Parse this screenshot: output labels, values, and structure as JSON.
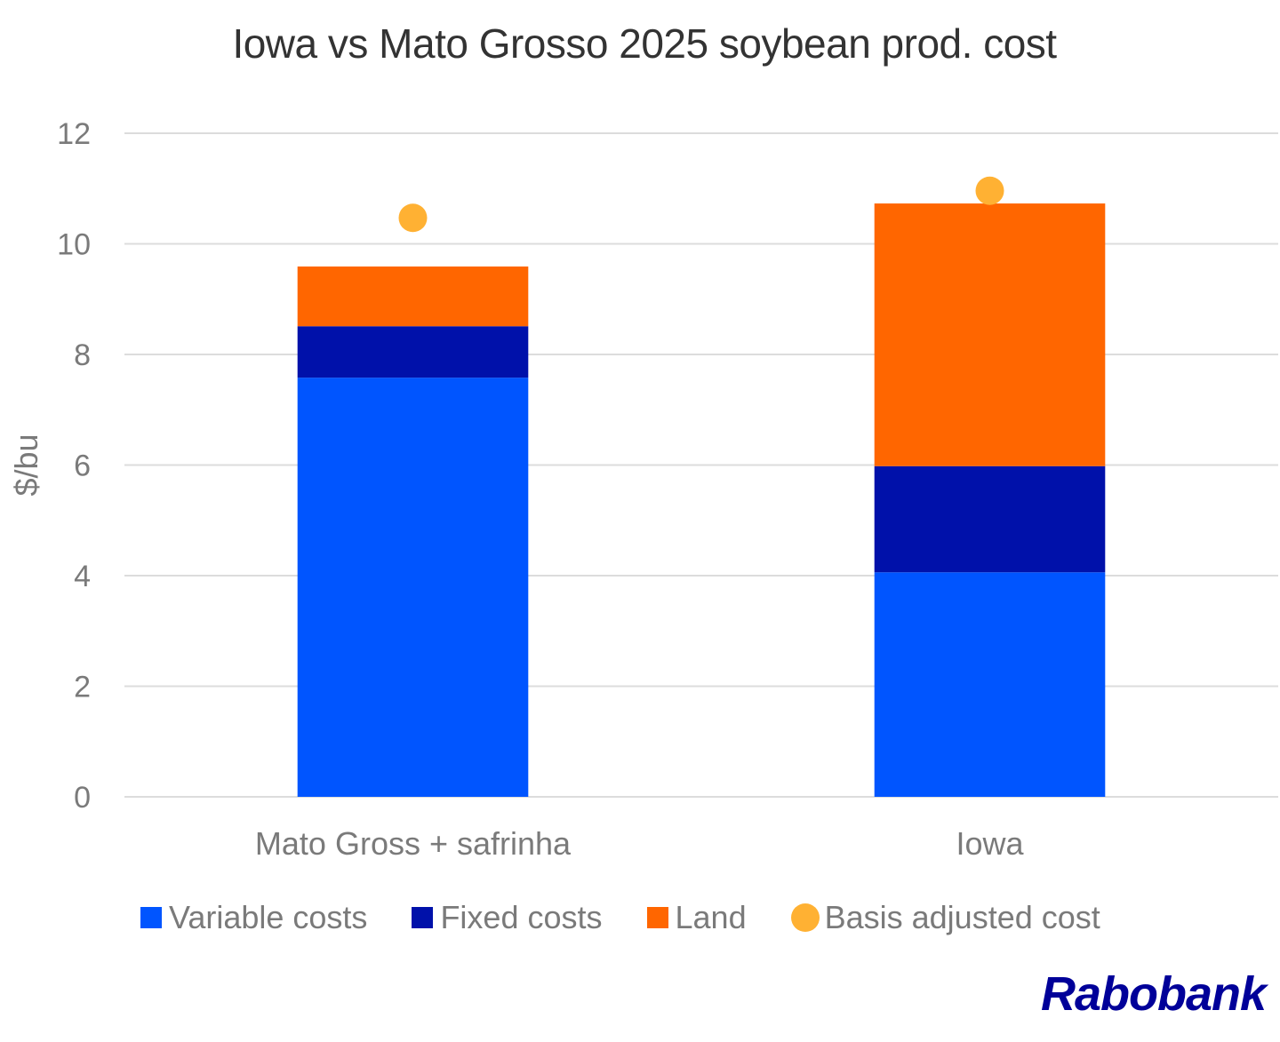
{
  "chart_data": {
    "type": "bar",
    "stacked": true,
    "title": "Iowa vs Mato Grosso 2025 soybean prod.  cost",
    "ylabel": "$/bu",
    "xlabel": "",
    "ylim": [
      0,
      12
    ],
    "yticks": [
      0,
      2,
      4,
      6,
      8,
      10,
      12
    ],
    "grid": true,
    "legend_position": "bottom",
    "categories": [
      "Mato Gross + safrinha",
      "Iowa"
    ],
    "series": [
      {
        "name": "Variable costs",
        "kind": "bar",
        "color": "#0055FF",
        "values": [
          7.58,
          4.06
        ]
      },
      {
        "name": "Fixed costs",
        "kind": "bar",
        "color": "#0011AA",
        "values": [
          0.93,
          1.92
        ]
      },
      {
        "name": "Land",
        "kind": "bar",
        "color": "#FF6600",
        "values": [
          1.08,
          4.75
        ]
      },
      {
        "name": "Basis adjusted cost",
        "kind": "point",
        "color": "#FFB133",
        "values": [
          10.47,
          10.96
        ]
      }
    ]
  },
  "logo": "Rabobank"
}
